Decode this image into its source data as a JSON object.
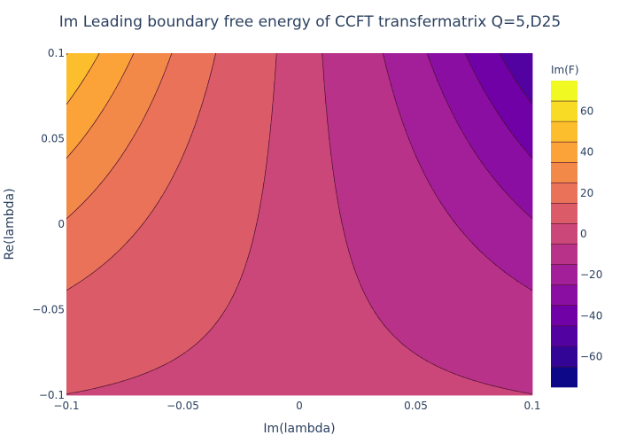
{
  "chart_data": {
    "type": "contour",
    "title": "Im Leading boundary free energy of CCFT transfermatrix Q=5,D25",
    "xlabel": "Im(lambda)",
    "ylabel": "Re(lambda)",
    "xlim": [
      -0.1,
      0.1
    ],
    "ylim": [
      -0.1,
      0.1
    ],
    "x_ticks": [
      -0.1,
      -0.05,
      0,
      0.05,
      0.1
    ],
    "x_tick_labels": [
      "−0.1",
      "−0.05",
      "0",
      "0.05",
      "0.1"
    ],
    "y_ticks": [
      -0.1,
      -0.05,
      0,
      0.05,
      0.1
    ],
    "y_tick_labels": [
      "−0.1",
      "−0.05",
      "0",
      "0.05",
      "0.1"
    ],
    "colorbar": {
      "title": "Im(F)",
      "zmin": -75,
      "zmax": 75,
      "contour_size": 10,
      "ticks": [
        60,
        40,
        20,
        0,
        -20,
        -40,
        -60
      ],
      "tick_labels": [
        "60",
        "40",
        "20",
        "0",
        "−20",
        "−40",
        "−60"
      ]
    },
    "colorscale": [
      "#0d0887",
      "#46039f",
      "#7201a8",
      "#9c179e",
      "#bd3786",
      "#d8576b",
      "#ed7953",
      "#fb9f3a",
      "#fdca26",
      "#f0f921"
    ],
    "line_color": "#4a0e2e"
  }
}
